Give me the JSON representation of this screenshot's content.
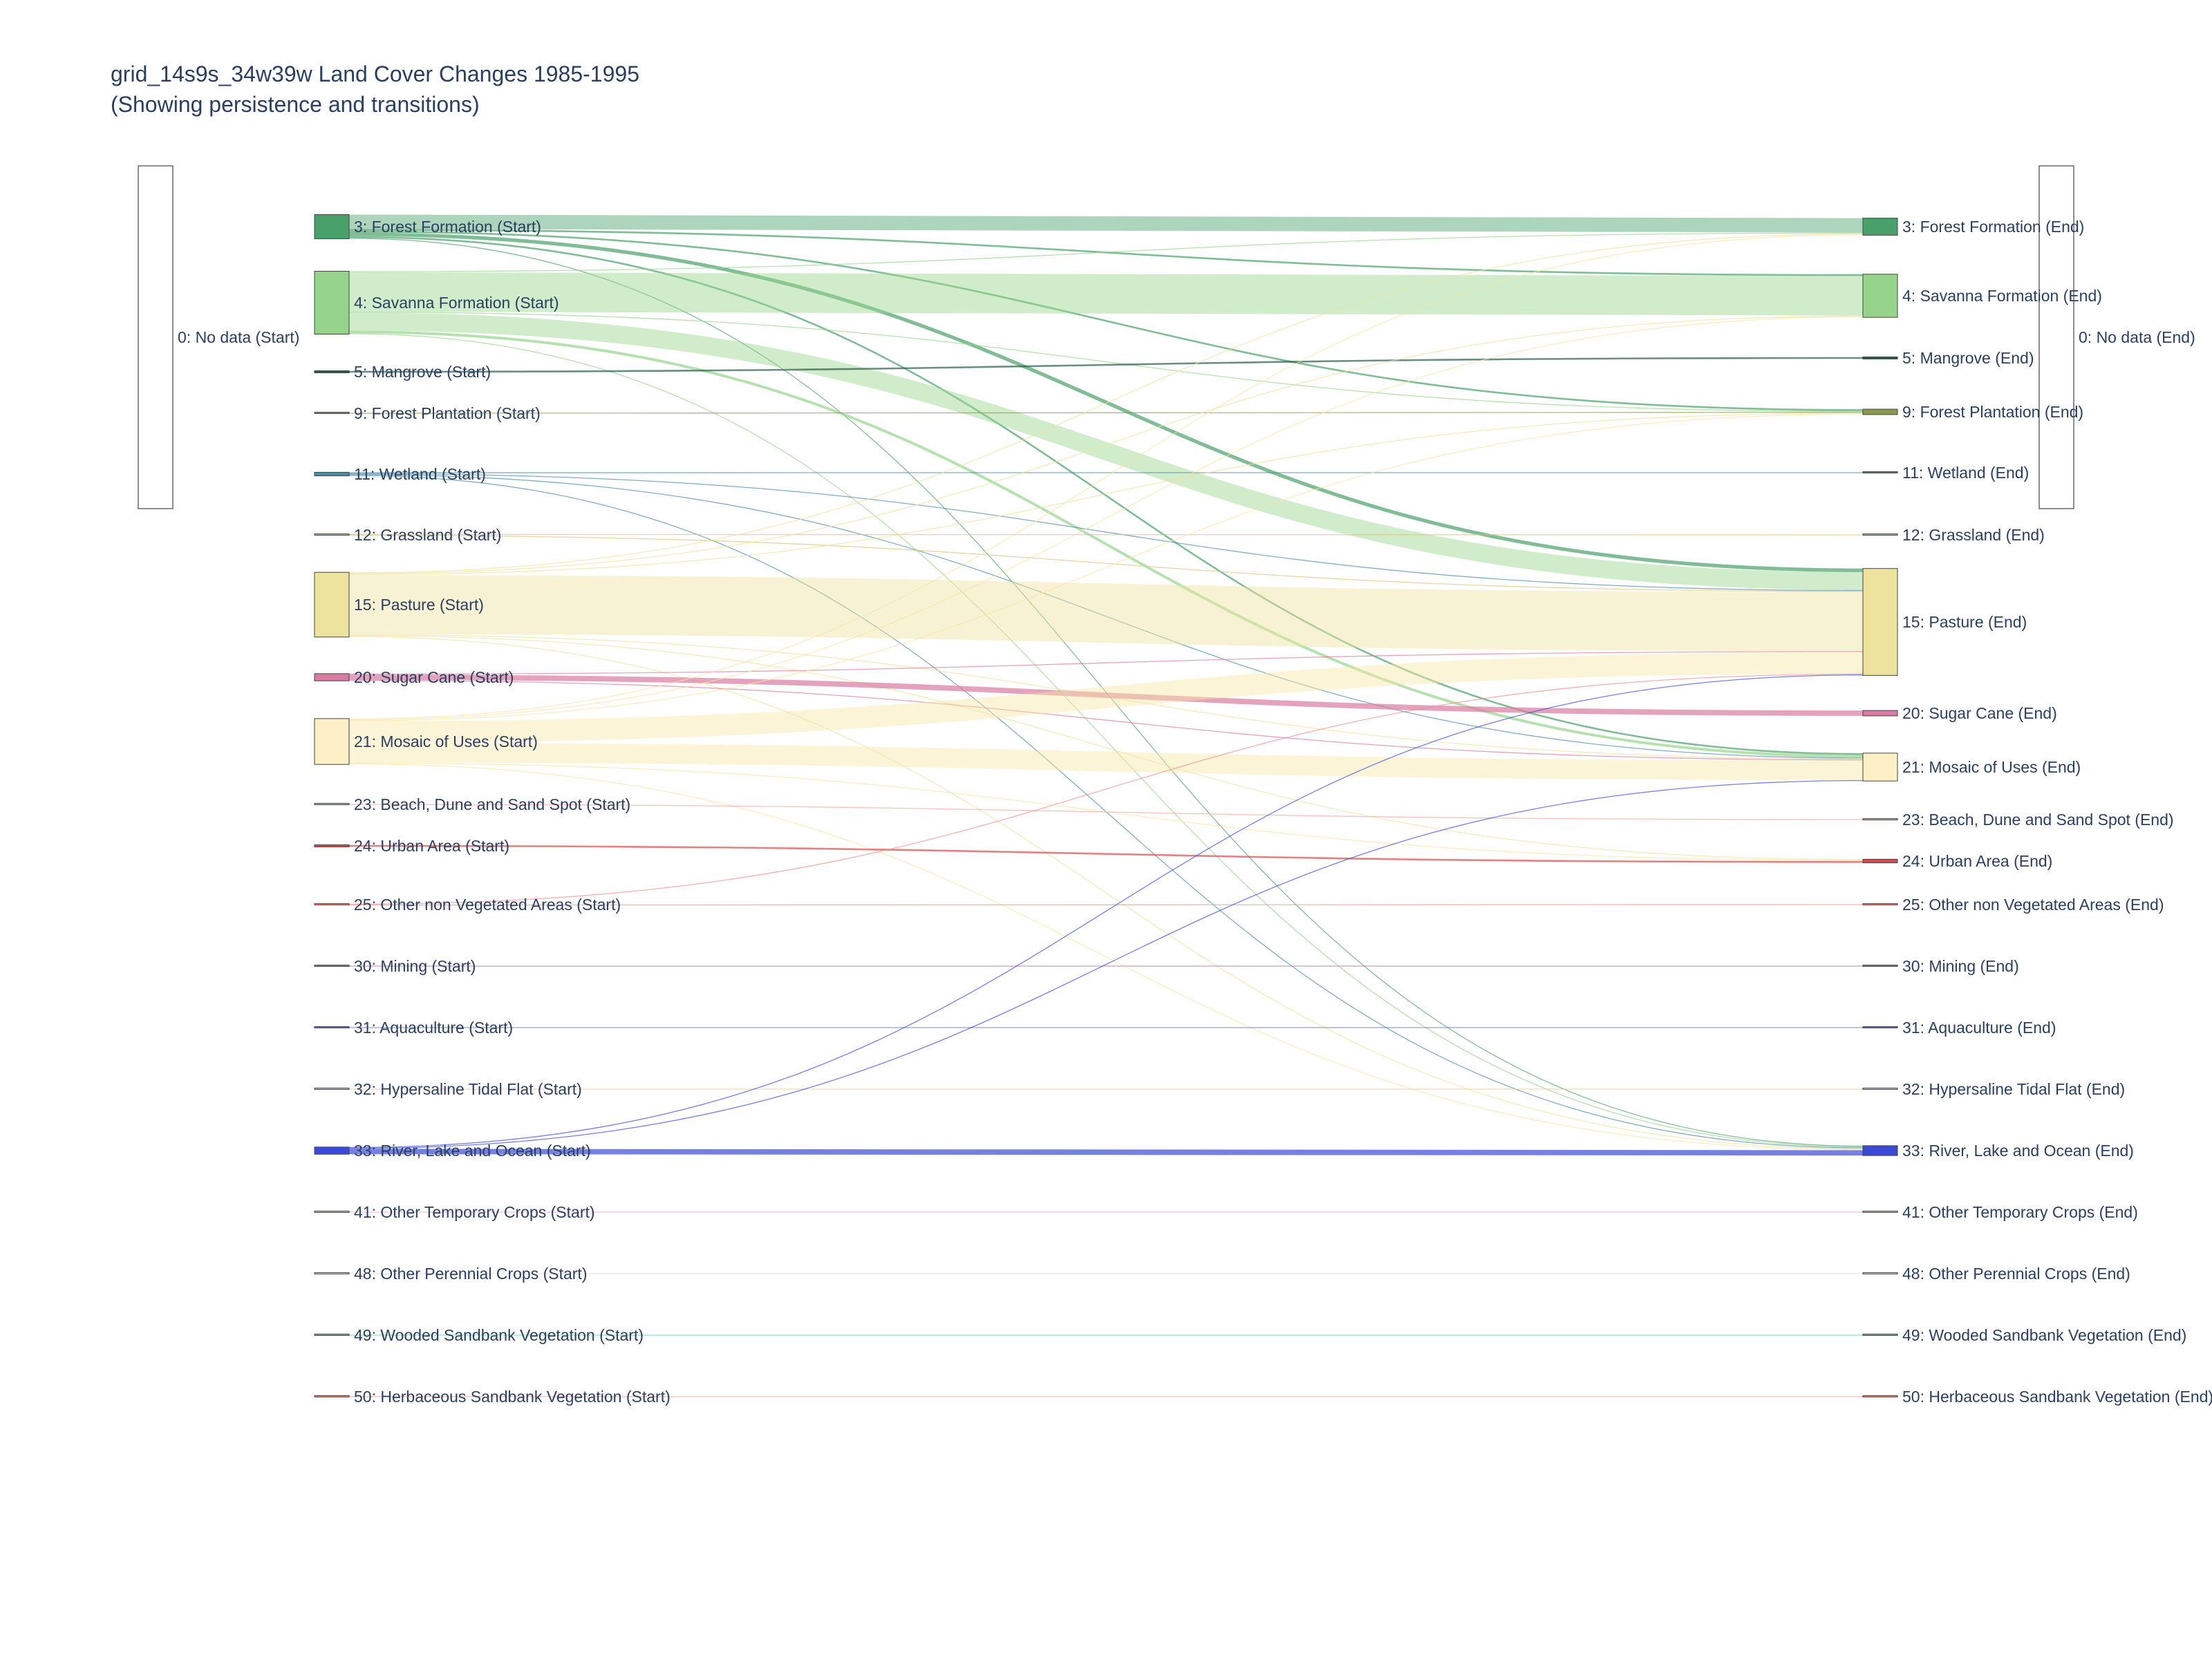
{
  "chart_data": {
    "type": "sankey",
    "title": "grid_14s9s_34w39w Land Cover Changes 1985-1995",
    "subtitle": "(Showing persistence and transitions)",
    "nodes": [
      {
        "id": "s0",
        "label": "0: No data (Start)",
        "color": "#ffffff"
      },
      {
        "id": "s3",
        "label": "3: Forest Formation (Start)",
        "color": "#4aa06a"
      },
      {
        "id": "s4",
        "label": "4: Savanna Formation (Start)",
        "color": "#96d48c"
      },
      {
        "id": "s5",
        "label": "5: Mangrove (Start)",
        "color": "#2a5d4a"
      },
      {
        "id": "s9",
        "label": "9: Forest Plantation (Start)",
        "color": "#8a9a4a"
      },
      {
        "id": "s11",
        "label": "11: Wetland (Start)",
        "color": "#4a8aa8"
      },
      {
        "id": "s12",
        "label": "12: Grassland (Start)",
        "color": "#d8c47a"
      },
      {
        "id": "s15",
        "label": "15: Pasture (Start)",
        "color": "#ede29e"
      },
      {
        "id": "s20",
        "label": "20: Sugar Cane (Start)",
        "color": "#d97aa0"
      },
      {
        "id": "s21",
        "label": "21: Mosaic of Uses (Start)",
        "color": "#fdf0c6"
      },
      {
        "id": "s23",
        "label": "23: Beach, Dune and Sand Spot (Start)",
        "color": "#f2a89a"
      },
      {
        "id": "s24",
        "label": "24: Urban Area (Start)",
        "color": "#d94a4a"
      },
      {
        "id": "s25",
        "label": "25: Other non Vegetated Areas (Start)",
        "color": "#ef8f8f"
      },
      {
        "id": "s30",
        "label": "30: Mining (Start)",
        "color": "#b07aa0"
      },
      {
        "id": "s31",
        "label": "31: Aquaculture (Start)",
        "color": "#6a7aa8"
      },
      {
        "id": "s32",
        "label": "32: Hypersaline Tidal Flat (Start)",
        "color": "#f0c890"
      },
      {
        "id": "s33",
        "label": "33: River, Lake and Ocean (Start)",
        "color": "#3a4ad6"
      },
      {
        "id": "s41",
        "label": "41: Other Temporary Crops (Start)",
        "color": "#f2a0d8"
      },
      {
        "id": "s48",
        "label": "48: Other Perennial Crops (Start)",
        "color": "#dcdcdc"
      },
      {
        "id": "s49",
        "label": "49: Wooded Sandbank Vegetation (Start)",
        "color": "#5ad6a0"
      },
      {
        "id": "s50",
        "label": "50: Herbaceous Sandbank Vegetation (Start)",
        "color": "#e8a090"
      },
      {
        "id": "e0",
        "label": "0: No data (End)",
        "color": "#ffffff"
      },
      {
        "id": "e3",
        "label": "3: Forest Formation (End)",
        "color": "#4aa06a"
      },
      {
        "id": "e4",
        "label": "4: Savanna Formation (End)",
        "color": "#96d48c"
      },
      {
        "id": "e5",
        "label": "5: Mangrove (End)",
        "color": "#2a5d4a"
      },
      {
        "id": "e9",
        "label": "9: Forest Plantation (End)",
        "color": "#8a9a4a"
      },
      {
        "id": "e11",
        "label": "11: Wetland (End)",
        "color": "#4a8aa8"
      },
      {
        "id": "e12",
        "label": "12: Grassland (End)",
        "color": "#d8c47a"
      },
      {
        "id": "e15",
        "label": "15: Pasture (End)",
        "color": "#ede29e"
      },
      {
        "id": "e20",
        "label": "20: Sugar Cane (End)",
        "color": "#d97aa0"
      },
      {
        "id": "e21",
        "label": "21: Mosaic of Uses (End)",
        "color": "#fdf0c6"
      },
      {
        "id": "e23",
        "label": "23: Beach, Dune and Sand Spot (End)",
        "color": "#f2a89a"
      },
      {
        "id": "e24",
        "label": "24: Urban Area (End)",
        "color": "#d94a4a"
      },
      {
        "id": "e25",
        "label": "25: Other non Vegetated Areas (End)",
        "color": "#ef8f8f"
      },
      {
        "id": "e30",
        "label": "30: Mining (End)",
        "color": "#b07aa0"
      },
      {
        "id": "e31",
        "label": "31: Aquaculture (End)",
        "color": "#6a7aa8"
      },
      {
        "id": "e32",
        "label": "32: Hypersaline Tidal Flat (End)",
        "color": "#f0c890"
      },
      {
        "id": "e33",
        "label": "33: River, Lake and Ocean (End)",
        "color": "#3a4ad6"
      },
      {
        "id": "e41",
        "label": "41: Other Temporary Crops (End)",
        "color": "#f2a0d8"
      },
      {
        "id": "e48",
        "label": "48: Other Perennial Crops (End)",
        "color": "#dcdcdc"
      },
      {
        "id": "e49",
        "label": "49: Wooded Sandbank Vegetation (End)",
        "color": "#5ad6a0"
      },
      {
        "id": "e50",
        "label": "50: Herbaceous Sandbank Vegetation (End)",
        "color": "#e8a090"
      }
    ],
    "links": [
      {
        "source": "s3",
        "target": "e3",
        "value": 16
      },
      {
        "source": "s3",
        "target": "e4",
        "value": 2
      },
      {
        "source": "s3",
        "target": "e9",
        "value": 2
      },
      {
        "source": "s3",
        "target": "e15",
        "value": 4
      },
      {
        "source": "s3",
        "target": "e21",
        "value": 2
      },
      {
        "source": "s3",
        "target": "e33",
        "value": 1
      },
      {
        "source": "s4",
        "target": "e3",
        "value": 1
      },
      {
        "source": "s4",
        "target": "e4",
        "value": 44
      },
      {
        "source": "s4",
        "target": "e9",
        "value": 1
      },
      {
        "source": "s4",
        "target": "e15",
        "value": 20
      },
      {
        "source": "s4",
        "target": "e21",
        "value": 3
      },
      {
        "source": "s4",
        "target": "e33",
        "value": 1
      },
      {
        "source": "s5",
        "target": "e5",
        "value": 2
      },
      {
        "source": "s9",
        "target": "e9",
        "value": 1
      },
      {
        "source": "s11",
        "target": "e11",
        "value": 1
      },
      {
        "source": "s11",
        "target": "e15",
        "value": 1
      },
      {
        "source": "s11",
        "target": "e21",
        "value": 1
      },
      {
        "source": "s11",
        "target": "e33",
        "value": 1
      },
      {
        "source": "s12",
        "target": "e12",
        "value": 1
      },
      {
        "source": "s12",
        "target": "e15",
        "value": 1
      },
      {
        "source": "s15",
        "target": "e3",
        "value": 1
      },
      {
        "source": "s15",
        "target": "e4",
        "value": 1
      },
      {
        "source": "s15",
        "target": "e9",
        "value": 1
      },
      {
        "source": "s15",
        "target": "e15",
        "value": 66
      },
      {
        "source": "s15",
        "target": "e21",
        "value": 1
      },
      {
        "source": "s15",
        "target": "e24",
        "value": 1
      },
      {
        "source": "s15",
        "target": "e33",
        "value": 1
      },
      {
        "source": "s20",
        "target": "e15",
        "value": 1
      },
      {
        "source": "s20",
        "target": "e20",
        "value": 6
      },
      {
        "source": "s20",
        "target": "e21",
        "value": 1
      },
      {
        "source": "s21",
        "target": "e3",
        "value": 1
      },
      {
        "source": "s21",
        "target": "e4",
        "value": 1
      },
      {
        "source": "s21",
        "target": "e9",
        "value": 1
      },
      {
        "source": "s21",
        "target": "e15",
        "value": 24
      },
      {
        "source": "s21",
        "target": "e21",
        "value": 22
      },
      {
        "source": "s21",
        "target": "e24",
        "value": 1
      },
      {
        "source": "s21",
        "target": "e33",
        "value": 1
      },
      {
        "source": "s23",
        "target": "e23",
        "value": 1
      },
      {
        "source": "s24",
        "target": "e24",
        "value": 2
      },
      {
        "source": "s25",
        "target": "e15",
        "value": 1
      },
      {
        "source": "s25",
        "target": "e25",
        "value": 1
      },
      {
        "source": "s30",
        "target": "e30",
        "value": 1
      },
      {
        "source": "s31",
        "target": "e31",
        "value": 1
      },
      {
        "source": "s32",
        "target": "e32",
        "value": 1
      },
      {
        "source": "s33",
        "target": "e15",
        "value": 1
      },
      {
        "source": "s33",
        "target": "e21",
        "value": 1
      },
      {
        "source": "s33",
        "target": "e33",
        "value": 6
      },
      {
        "source": "s41",
        "target": "e41",
        "value": 1
      },
      {
        "source": "s48",
        "target": "e48",
        "value": 1
      },
      {
        "source": "s49",
        "target": "e49",
        "value": 1
      },
      {
        "source": "s50",
        "target": "e50",
        "value": 1
      }
    ]
  }
}
